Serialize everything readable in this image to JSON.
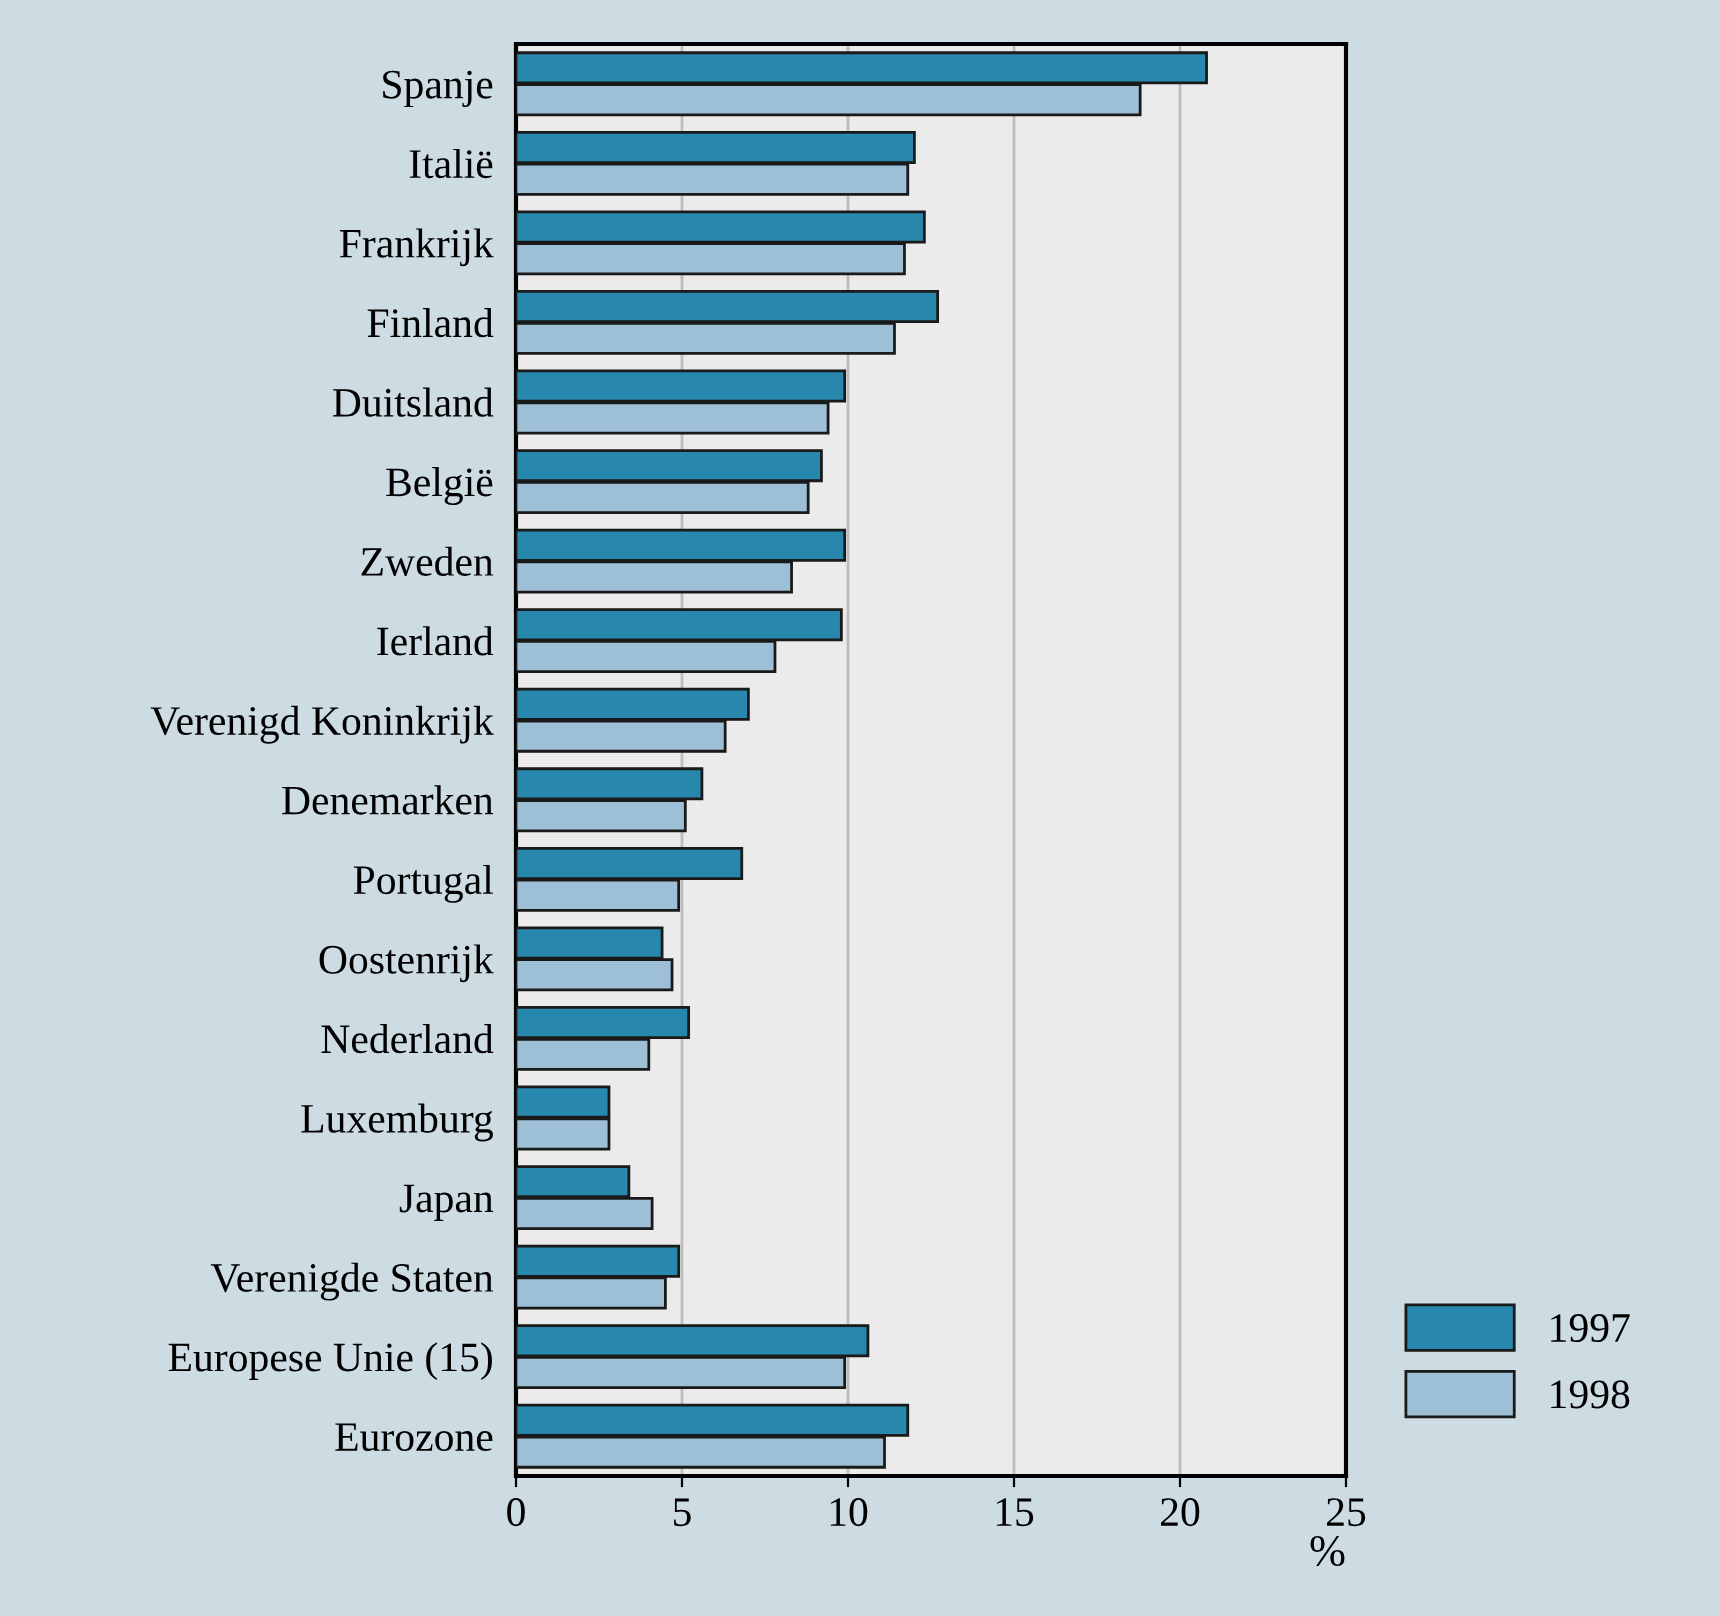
{
  "chart_data": {
    "type": "bar",
    "orientation": "horizontal",
    "xlabel": "%",
    "categories": [
      "Spanje",
      "Italië",
      "Frankrijk",
      "Finland",
      "Duitsland",
      "België",
      "Zweden",
      "Ierland",
      "Verenigd Koninkrijk",
      "Denemarken",
      "Portugal",
      "Oostenrijk",
      "Nederland",
      "Luxemburg",
      "Japan",
      "Verenigde Staten",
      "Europese Unie (15)",
      "Eurozone"
    ],
    "series": [
      {
        "name": "1997",
        "color": "#2787ad",
        "values": [
          20.8,
          12.0,
          12.3,
          12.7,
          9.9,
          9.2,
          9.9,
          9.8,
          7.0,
          5.6,
          6.8,
          4.4,
          5.2,
          2.8,
          3.4,
          4.9,
          10.6,
          11.8
        ]
      },
      {
        "name": "1998",
        "color": "#9ec0d6",
        "values": [
          18.8,
          11.8,
          11.7,
          11.4,
          9.4,
          8.8,
          8.3,
          7.8,
          6.3,
          5.1,
          4.9,
          4.7,
          4.0,
          2.8,
          4.1,
          4.5,
          9.9,
          11.1
        ]
      }
    ],
    "xlim": [
      0,
      25
    ],
    "xticks": [
      0,
      5,
      10,
      15,
      20,
      25
    ],
    "grid": "x",
    "legend": "bottom right"
  }
}
